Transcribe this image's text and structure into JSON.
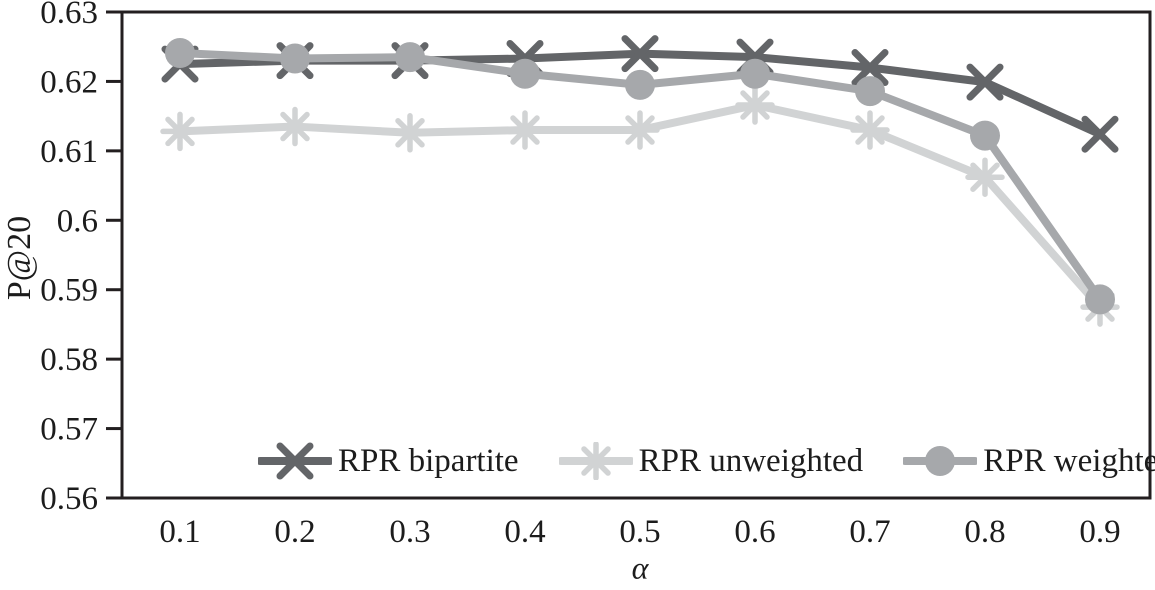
{
  "chart_data": {
    "type": "line",
    "title": "",
    "xlabel": "α",
    "ylabel": "P@20",
    "x": [
      0.1,
      0.2,
      0.3,
      0.4,
      0.5,
      0.6,
      0.7,
      0.8,
      0.9
    ],
    "xtick_labels": [
      "0.1",
      "0.2",
      "0.3",
      "0.4",
      "0.5",
      "0.6",
      "0.7",
      "0.8",
      "0.9"
    ],
    "ylim": [
      0.56,
      0.63
    ],
    "yticks": [
      0.63,
      0.62,
      0.61,
      0.6,
      0.59,
      0.58,
      0.57,
      0.56
    ],
    "ytick_labels": [
      "0.63",
      "0.62",
      "0.61",
      "0.6",
      "0.59",
      "0.58",
      "0.57",
      "0.56"
    ],
    "grid": false,
    "legend_position": "bottom-inside",
    "axis_color": "#231f20",
    "text_color": "#1c1c1c",
    "series": [
      {
        "name": "RPR bipartite",
        "marker": "x",
        "color": "#636568",
        "values": [
          0.6225,
          0.623,
          0.623,
          0.6233,
          0.624,
          0.6235,
          0.622,
          0.6199,
          0.6124
        ]
      },
      {
        "name": "RPR unweighted",
        "marker": "asterisk",
        "color": "#d1d3d4",
        "values": [
          0.6128,
          0.6135,
          0.6126,
          0.613,
          0.613,
          0.6166,
          0.613,
          0.6062,
          0.5875
        ]
      },
      {
        "name": "RPR weighted",
        "marker": "circle",
        "color": "#a6a8ab",
        "values": [
          0.6241,
          0.6233,
          0.6235,
          0.6211,
          0.6195,
          0.6211,
          0.6186,
          0.6122,
          0.5886
        ]
      }
    ]
  }
}
